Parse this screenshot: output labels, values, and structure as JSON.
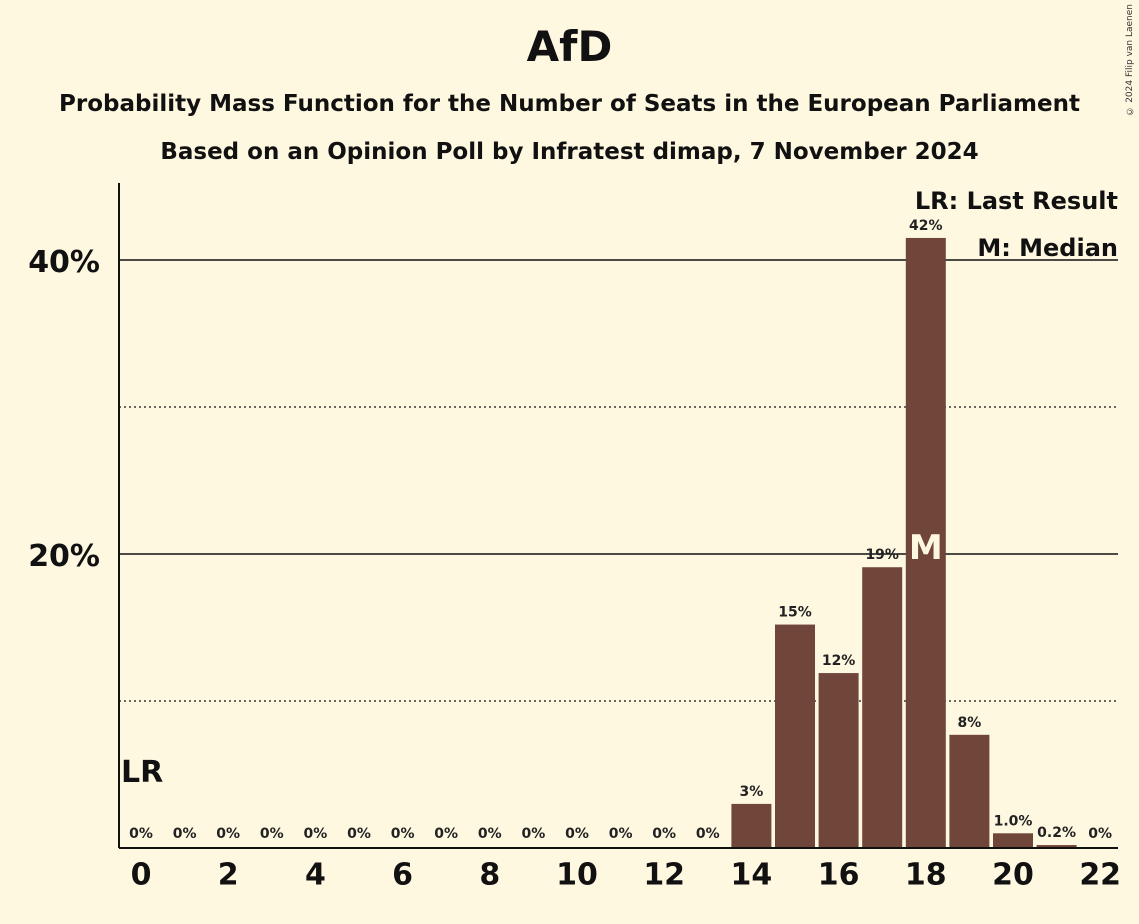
{
  "chart_data": {
    "type": "bar",
    "title": "AfD",
    "subtitle": "Probability Mass Function for the Number of Seats in the European Parliament",
    "subtitle2": "Based on an Opinion Poll by Infratest dimap, 7 November 2024",
    "copyright": "© 2024 Filip van Laenen",
    "categories": [
      0,
      1,
      2,
      3,
      4,
      5,
      6,
      7,
      8,
      9,
      10,
      11,
      12,
      13,
      14,
      15,
      16,
      17,
      18,
      19,
      20,
      21,
      22
    ],
    "values": [
      0,
      0,
      0,
      0,
      0,
      0,
      0,
      0,
      0,
      0,
      0,
      0,
      0,
      0,
      3.0,
      15.2,
      11.9,
      19.1,
      41.5,
      7.7,
      1.0,
      0.2,
      0
    ],
    "value_labels": [
      "0%",
      "0%",
      "0%",
      "0%",
      "0%",
      "0%",
      "0%",
      "0%",
      "0%",
      "0%",
      "0%",
      "0%",
      "0%",
      "0%",
      "3%",
      "15%",
      "12%",
      "19%",
      "42%",
      "8%",
      "1.0%",
      "0.2%",
      "0%"
    ],
    "x_tick_labels": [
      "0",
      "2",
      "4",
      "6",
      "8",
      "10",
      "12",
      "14",
      "16",
      "18",
      "20",
      "22"
    ],
    "y_tick_labels": [
      "20%",
      "40%"
    ],
    "ylim": [
      0,
      45
    ],
    "gridlines": {
      "solid": [
        20,
        40
      ],
      "dotted": [
        10,
        30
      ]
    },
    "last_result_seat": 0,
    "median_seat": 18,
    "lr_marker": "LR",
    "median_marker": "M",
    "legend": [
      "LR: Last Result",
      "M: Median"
    ],
    "legend_position": "top-right",
    "bar_color": "#70453A",
    "background_color": "#FFF8E1"
  }
}
